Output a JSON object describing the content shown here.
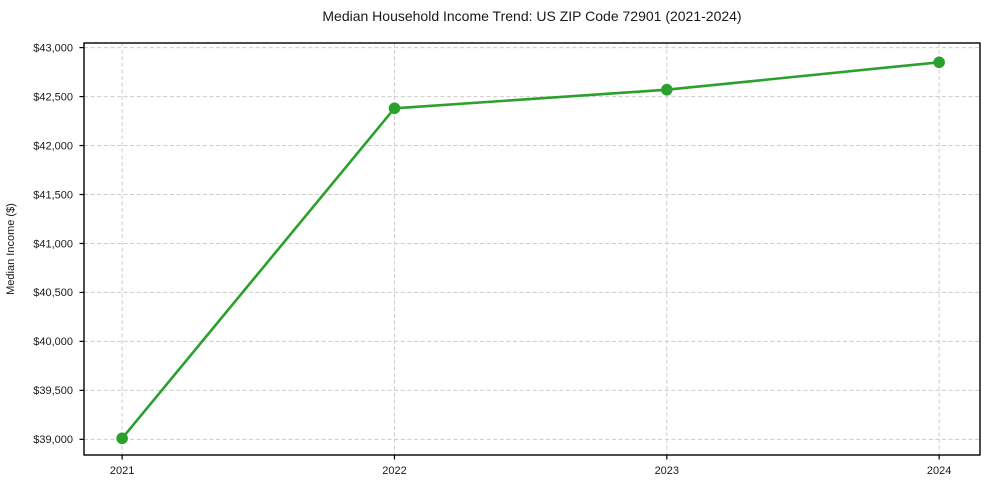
{
  "page": {
    "background": "#ffffff"
  },
  "chart_data": {
    "type": "line",
    "title": "Median Household Income Trend: US ZIP Code 72901 (2021-2024)",
    "xlabel": "",
    "ylabel": "Median Income ($)",
    "x": [
      2021,
      2022,
      2023,
      2024
    ],
    "x_tick_labels": [
      "2021",
      "2022",
      "2023",
      "2024"
    ],
    "y_ticks": [
      39000,
      39500,
      40000,
      40500,
      41000,
      41500,
      42000,
      42500,
      43000
    ],
    "y_tick_labels": [
      "$39,000",
      "$39,500",
      "$40,000",
      "$40,500",
      "$41,000",
      "$41,500",
      "$42,000",
      "$42,500",
      "$43,000"
    ],
    "series": [
      {
        "name": "Median Household Income",
        "values": [
          39010,
          42380,
          42570,
          42850
        ],
        "color": "#2ca02c",
        "marker": "circle"
      }
    ],
    "xlim": [
      2020.86,
      2024.15
    ],
    "ylim": [
      38840,
      43047
    ],
    "grid": true,
    "grid_color": "#cccccc",
    "legend_position": "none"
  }
}
